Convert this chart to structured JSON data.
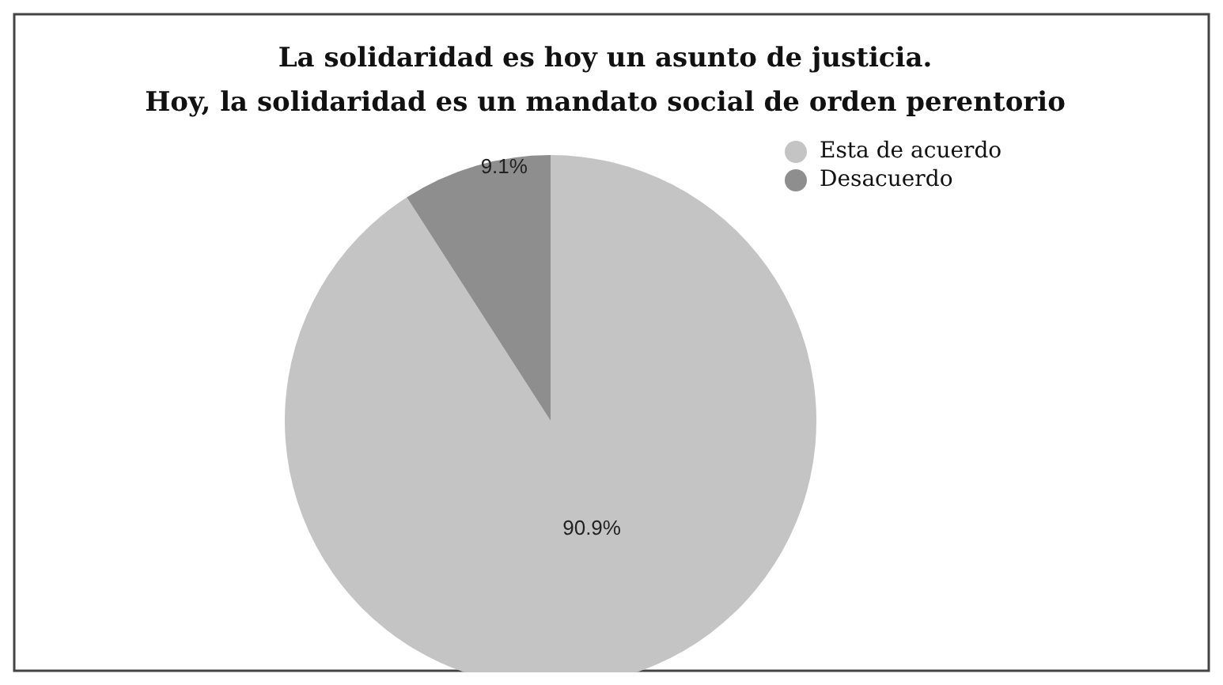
{
  "chart_data": {
    "type": "pie",
    "title": "La solidaridad es hoy un asunto de justicia. Hoy, la solidaridad es un mandato social de orden perentorio",
    "categories": [
      "Esta de acuerdo",
      "Desacuerdo"
    ],
    "values": [
      90.9,
      9.1
    ],
    "colors": [
      "#c4c4c4",
      "#8e8e8e"
    ],
    "value_labels": [
      "90.9%",
      "9.1%"
    ],
    "legend": "top right"
  }
}
